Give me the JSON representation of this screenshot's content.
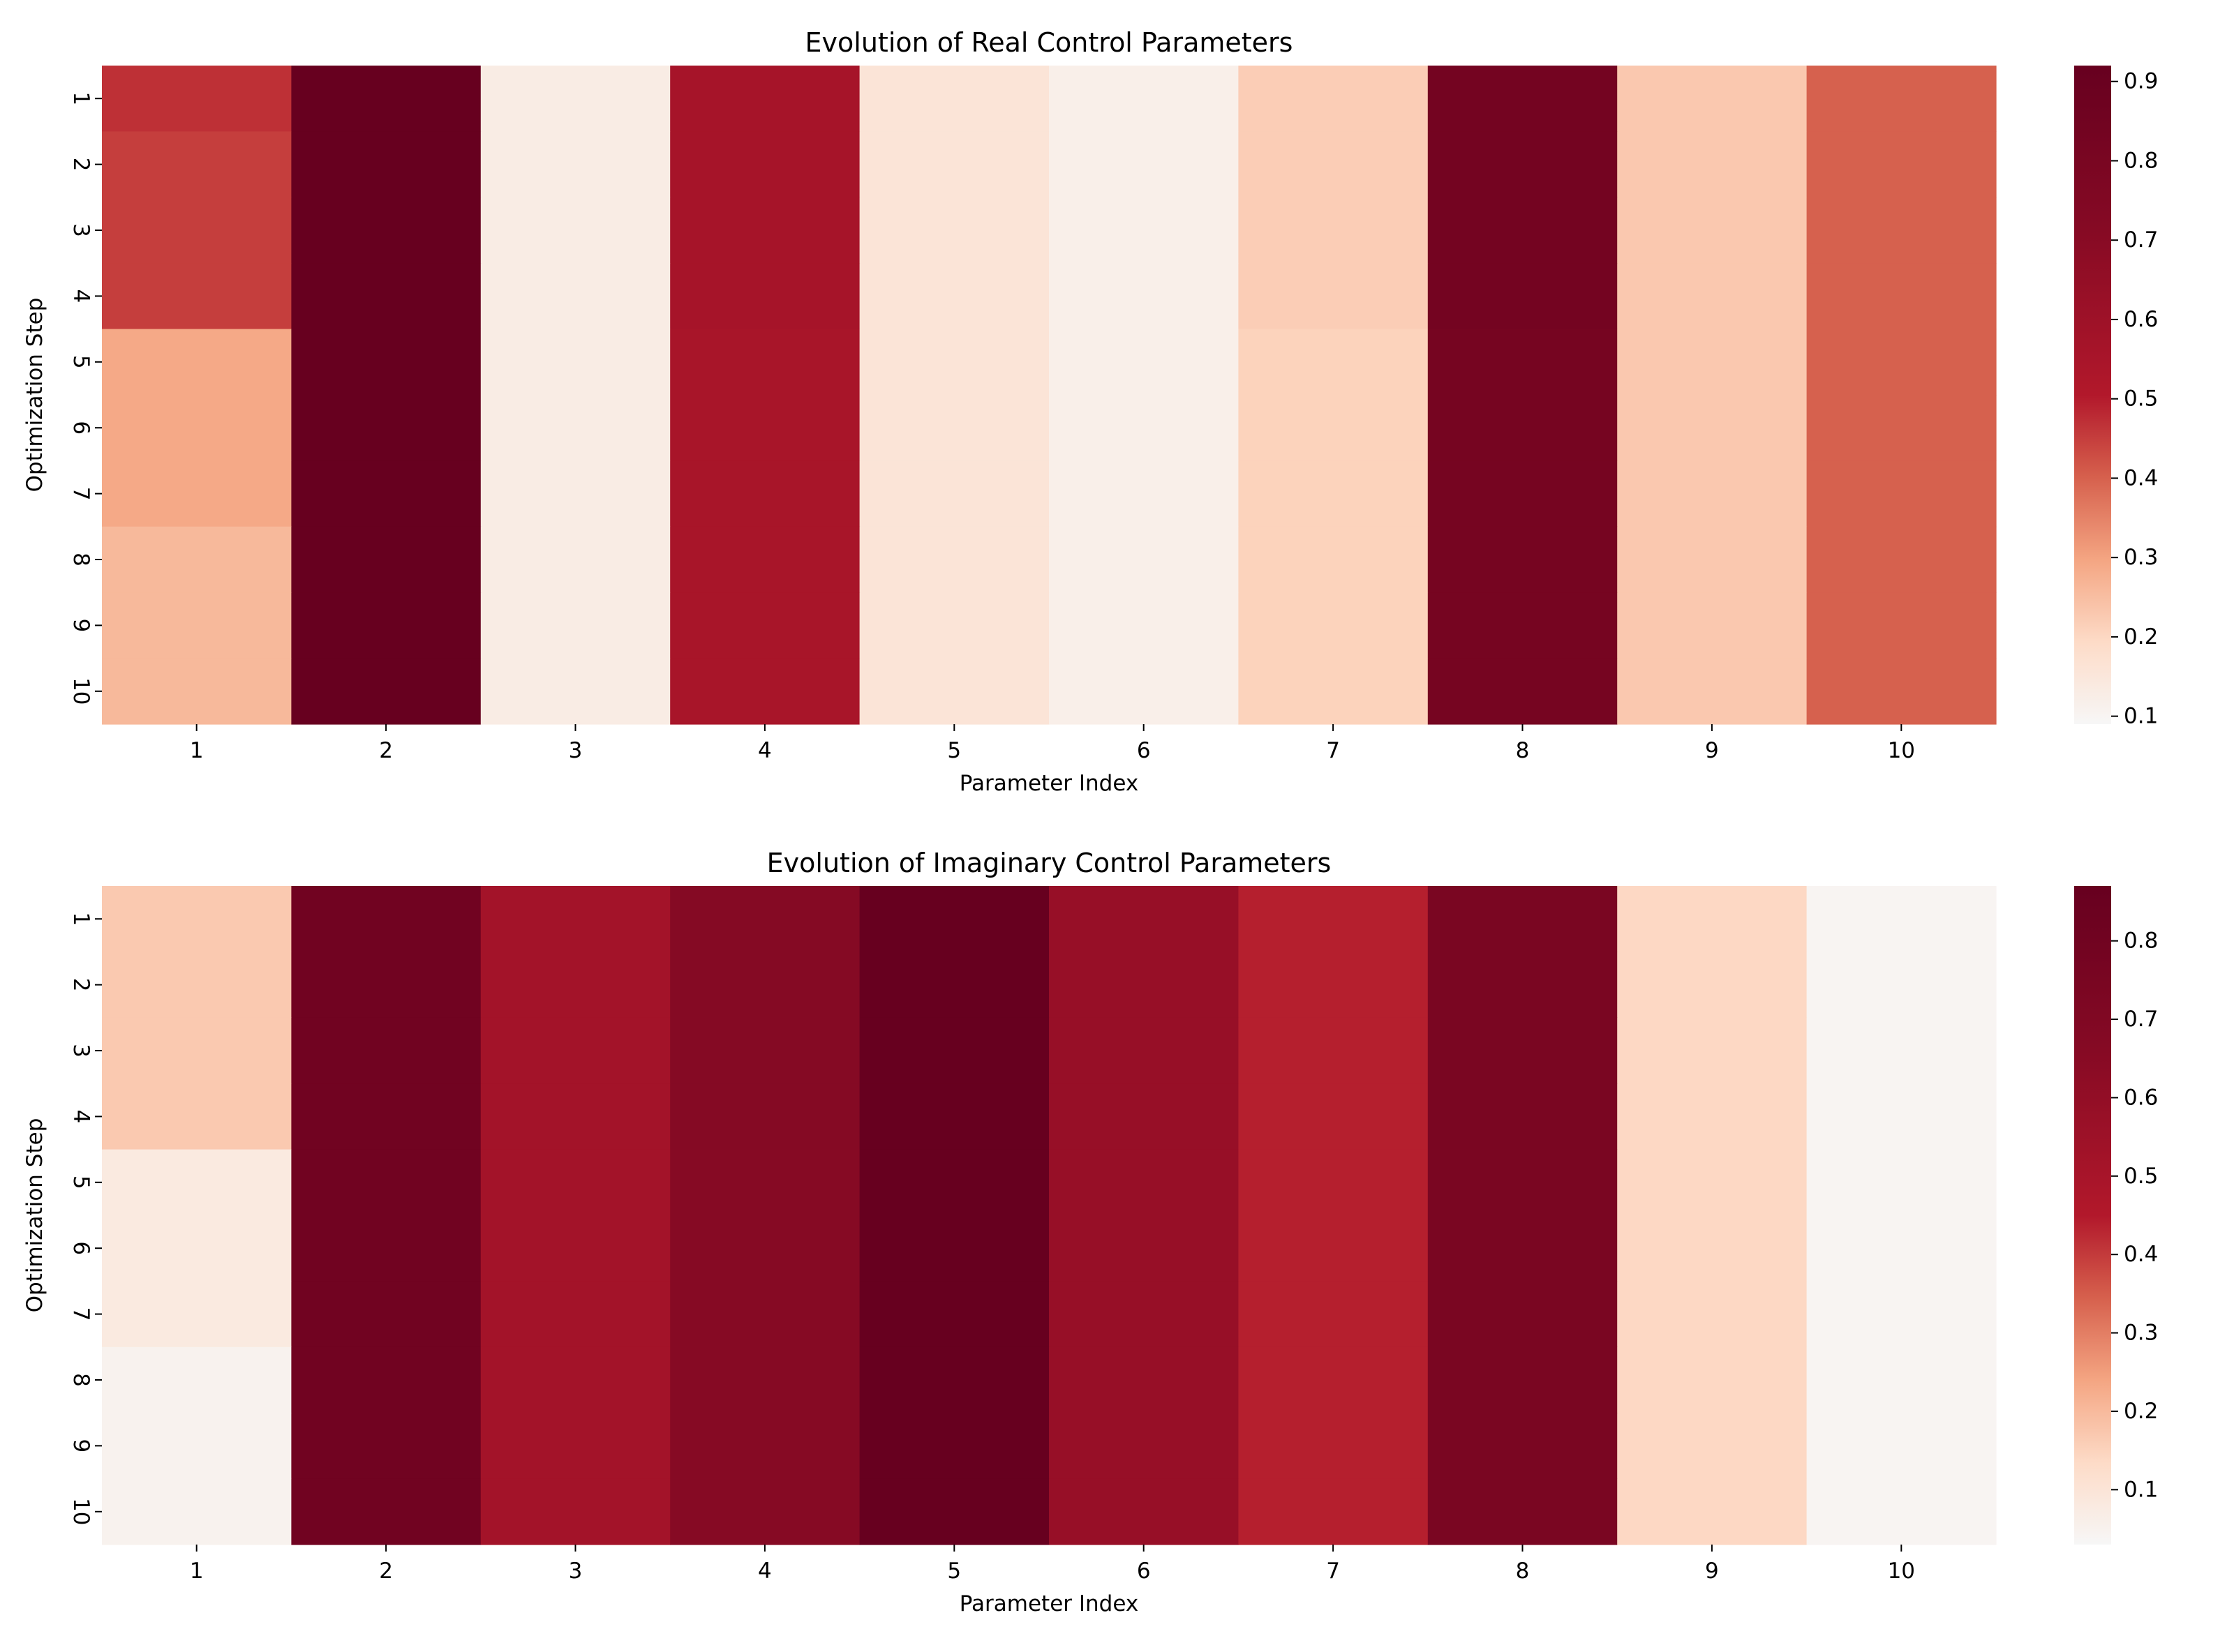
{
  "chart_data": [
    {
      "type": "heatmap",
      "title": "Evolution of Real Control Parameters",
      "xlabel": "Parameter Index",
      "ylabel": "Optimization Step",
      "x_ticks": [
        "1",
        "2",
        "3",
        "4",
        "5",
        "6",
        "7",
        "8",
        "9",
        "10"
      ],
      "y_ticks": [
        "1",
        "2",
        "3",
        "4",
        "5",
        "6",
        "7",
        "8",
        "9",
        "10"
      ],
      "colorscale": "RdBu_r (white to dark red)",
      "vmin": 0.09,
      "vmax": 0.92,
      "colorbar_ticks": [
        "0.1",
        "0.2",
        "0.3",
        "0.4",
        "0.5",
        "0.6",
        "0.7",
        "0.8",
        "0.9"
      ],
      "colorbar_tick_values": [
        0.1,
        0.2,
        0.3,
        0.4,
        0.5,
        0.6,
        0.7,
        0.8,
        0.9
      ],
      "values": [
        [
          0.47,
          0.92,
          0.13,
          0.56,
          0.16,
          0.12,
          0.22,
          0.83,
          0.23,
          0.4
        ],
        [
          0.45,
          0.92,
          0.13,
          0.56,
          0.16,
          0.12,
          0.22,
          0.83,
          0.23,
          0.4
        ],
        [
          0.45,
          0.92,
          0.13,
          0.56,
          0.16,
          0.12,
          0.22,
          0.83,
          0.23,
          0.4
        ],
        [
          0.45,
          0.92,
          0.13,
          0.56,
          0.16,
          0.12,
          0.22,
          0.83,
          0.23,
          0.4
        ],
        [
          0.29,
          0.92,
          0.13,
          0.55,
          0.16,
          0.12,
          0.21,
          0.82,
          0.23,
          0.4
        ],
        [
          0.29,
          0.92,
          0.13,
          0.55,
          0.16,
          0.12,
          0.21,
          0.82,
          0.23,
          0.4
        ],
        [
          0.29,
          0.92,
          0.13,
          0.55,
          0.16,
          0.12,
          0.21,
          0.82,
          0.23,
          0.4
        ],
        [
          0.26,
          0.92,
          0.13,
          0.55,
          0.16,
          0.12,
          0.21,
          0.82,
          0.23,
          0.4
        ],
        [
          0.26,
          0.92,
          0.13,
          0.55,
          0.16,
          0.12,
          0.21,
          0.82,
          0.23,
          0.4
        ],
        [
          0.26,
          0.92,
          0.13,
          0.55,
          0.16,
          0.12,
          0.21,
          0.82,
          0.23,
          0.4
        ]
      ]
    },
    {
      "type": "heatmap",
      "title": "Evolution of Imaginary Control Parameters",
      "xlabel": "Parameter Index",
      "ylabel": "Optimization Step",
      "x_ticks": [
        "1",
        "2",
        "3",
        "4",
        "5",
        "6",
        "7",
        "8",
        "9",
        "10"
      ],
      "y_ticks": [
        "1",
        "2",
        "3",
        "4",
        "5",
        "6",
        "7",
        "8",
        "9",
        "10"
      ],
      "colorscale": "RdBu_r (white to dark red)",
      "vmin": 0.03,
      "vmax": 0.87,
      "colorbar_ticks": [
        "0.1",
        "0.2",
        "0.3",
        "0.4",
        "0.5",
        "0.6",
        "0.7",
        "0.8"
      ],
      "colorbar_tick_values": [
        0.1,
        0.2,
        0.3,
        0.4,
        0.5,
        0.6,
        0.7,
        0.8
      ],
      "values": [
        [
          0.17,
          0.8,
          0.52,
          0.67,
          0.87,
          0.58,
          0.44,
          0.74,
          0.14,
          0.04
        ],
        [
          0.17,
          0.8,
          0.52,
          0.67,
          0.87,
          0.58,
          0.44,
          0.74,
          0.14,
          0.04
        ],
        [
          0.17,
          0.8,
          0.52,
          0.67,
          0.87,
          0.58,
          0.44,
          0.74,
          0.14,
          0.04
        ],
        [
          0.17,
          0.8,
          0.52,
          0.67,
          0.87,
          0.58,
          0.44,
          0.74,
          0.14,
          0.04
        ],
        [
          0.08,
          0.8,
          0.52,
          0.66,
          0.87,
          0.58,
          0.44,
          0.74,
          0.14,
          0.04
        ],
        [
          0.08,
          0.8,
          0.52,
          0.66,
          0.87,
          0.58,
          0.44,
          0.74,
          0.14,
          0.04
        ],
        [
          0.08,
          0.8,
          0.52,
          0.66,
          0.87,
          0.58,
          0.44,
          0.74,
          0.14,
          0.04
        ],
        [
          0.05,
          0.8,
          0.52,
          0.66,
          0.87,
          0.58,
          0.44,
          0.74,
          0.14,
          0.04
        ],
        [
          0.05,
          0.8,
          0.52,
          0.66,
          0.87,
          0.58,
          0.44,
          0.74,
          0.14,
          0.04
        ],
        [
          0.05,
          0.8,
          0.52,
          0.66,
          0.87,
          0.58,
          0.44,
          0.74,
          0.14,
          0.04
        ]
      ]
    }
  ]
}
